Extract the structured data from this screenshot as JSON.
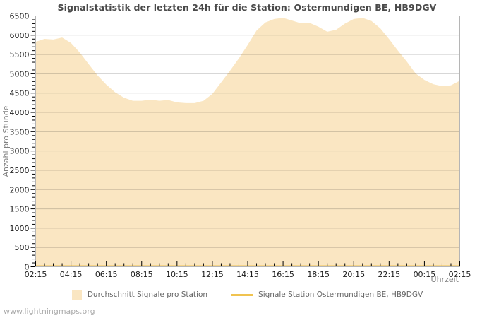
{
  "watermark": "www.lightningmaps.org",
  "colors": {
    "area_fill": "#fae6c2",
    "station_line": "#f0c350",
    "grid": "rgba(0,0,0,0.18)",
    "plot_border": "#b5b5b5",
    "tick": "#000000",
    "title_text": "#4a4a4a",
    "axis_secondary_text": "#808080",
    "legend_text": "#666666",
    "watermark_text": "#ababab"
  },
  "chart_data": {
    "type": "area",
    "title": "Signalstatistik der letzten 24h für die Station: Ostermundigen BE, HB9DGV",
    "xlabel": "Uhrzeit",
    "ylabel": "Anzahl pro Stunde",
    "ylim": [
      0,
      6500
    ],
    "ytick_step": 500,
    "yminor_step": 100,
    "x_hours_span": 24,
    "x_step_hours": 0.5,
    "xtick_step_hours": 2,
    "xminor_step_hours": 0.5,
    "xtick_labels": [
      "02:15",
      "04:15",
      "06:15",
      "08:15",
      "10:15",
      "12:15",
      "14:15",
      "16:15",
      "18:15",
      "20:15",
      "22:15",
      "00:15",
      "02:15"
    ],
    "grid": true,
    "legend_position": "bottom",
    "series": [
      {
        "name": "Durchschnitt Signale pro Station",
        "type": "area",
        "color": "#fae6c2",
        "values": [
          5830,
          5905,
          5890,
          5940,
          5800,
          5550,
          5250,
          4960,
          4720,
          4520,
          4380,
          4300,
          4300,
          4330,
          4300,
          4320,
          4260,
          4240,
          4240,
          4300,
          4480,
          4780,
          5080,
          5400,
          5750,
          6120,
          6330,
          6420,
          6450,
          6380,
          6310,
          6320,
          6220,
          6090,
          6140,
          6300,
          6420,
          6450,
          6370,
          6180,
          5900,
          5600,
          5320,
          5010,
          4840,
          4730,
          4680,
          4700,
          4820
        ]
      },
      {
        "name": "Signale Station Ostermundigen BE, HB9DGV",
        "type": "line",
        "color": "#f0c350",
        "x": [
          0,
          24
        ],
        "values": [
          0,
          0
        ]
      }
    ]
  }
}
